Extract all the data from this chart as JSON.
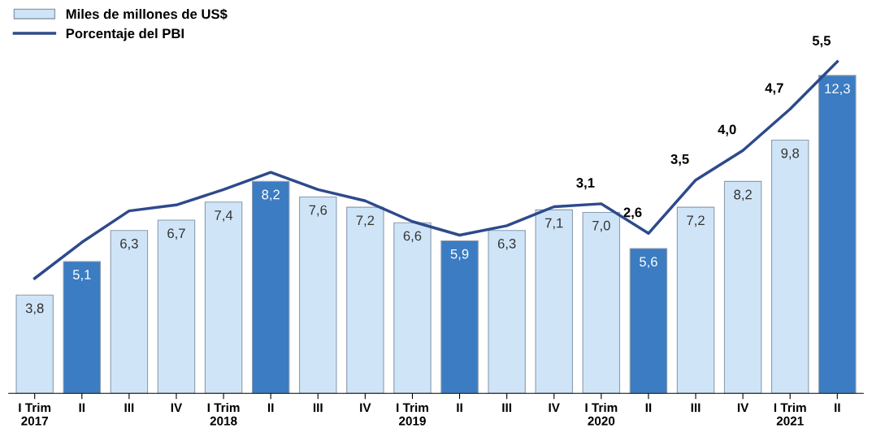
{
  "chart_data": {
    "type": "bar",
    "categories": [
      "I Trim\n2017",
      "II",
      "III",
      "IV",
      "I Trim\n2018",
      "II",
      "III",
      "IV",
      "I Trim\n2019",
      "II",
      "III",
      "IV",
      "I Trim\n2020",
      "II",
      "III",
      "IV",
      "I Trim\n2021",
      "II"
    ],
    "series": [
      {
        "name": "Miles de millones de US$",
        "color": "#cfe5f7",
        "colors": [
          "#cfe5f7",
          "#3b7cc2",
          "#cfe5f7",
          "#cfe5f7",
          "#cfe5f7",
          "#3b7cc2",
          "#cfe5f7",
          "#cfe5f7",
          "#cfe5f7",
          "#3b7cc2",
          "#cfe5f7",
          "#cfe5f7",
          "#cfe5f7",
          "#3b7cc2",
          "#cfe5f7",
          "#cfe5f7",
          "#cfe5f7",
          "#3b7cc2"
        ],
        "values": [
          3.8,
          5.1,
          6.3,
          6.7,
          7.4,
          8.2,
          7.6,
          7.2,
          6.6,
          5.9,
          6.3,
          7.1,
          7.0,
          5.6,
          7.2,
          8.2,
          9.8,
          12.3
        ],
        "value_labels": [
          "3,8",
          "5,1",
          "6,3",
          "6,7",
          "7,4",
          "8,2",
          "7,6",
          "7,2",
          "6,6",
          "5,9",
          "6,3",
          "7,1",
          "7,0",
          "5,6",
          "7,2",
          "8,2",
          "9,8",
          "12,3"
        ]
      },
      {
        "name": "Porcentaje del PBI",
        "type": "line",
        "axis": "y2",
        "color": "#2e4a8c",
        "values": [
          1.84,
          2.45,
          2.98,
          3.08,
          3.34,
          3.63,
          3.34,
          3.15,
          2.8,
          2.57,
          2.73,
          3.05,
          3.1,
          2.6,
          3.5,
          4.0,
          4.7,
          5.5
        ],
        "value_labels": [
          null,
          null,
          null,
          null,
          null,
          null,
          null,
          null,
          null,
          null,
          null,
          null,
          "3,1",
          "2,6",
          "3,5",
          "4,0",
          "4,7",
          "5,5"
        ]
      }
    ],
    "legend": "top left",
    "grid": false,
    "tick_labels": "x"
  }
}
